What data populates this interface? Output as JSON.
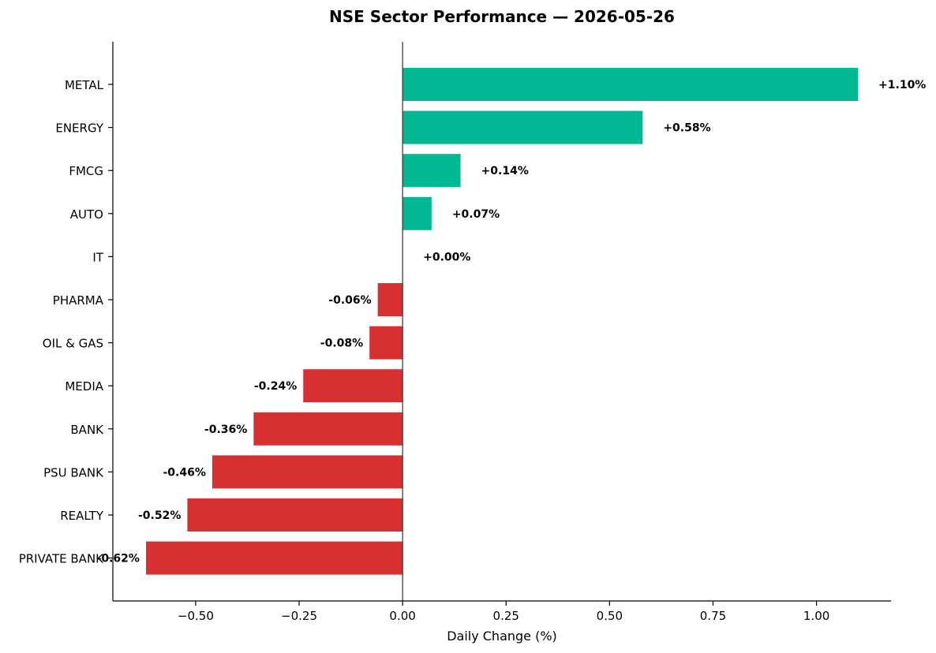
{
  "chart_data": {
    "type": "bar",
    "orientation": "horizontal",
    "title": "NSE Sector Performance — 2026-05-26",
    "xlabel": "Daily Change (%)",
    "ylabel": "",
    "categories": [
      "METAL",
      "ENERGY",
      "FMCG",
      "AUTO",
      "IT",
      "PHARMA",
      "OIL & GAS",
      "MEDIA",
      "BANK",
      "PSU BANK",
      "REALTY",
      "PRIVATE BANK"
    ],
    "values": [
      1.1,
      0.58,
      0.14,
      0.07,
      0.0,
      -0.06,
      -0.08,
      -0.24,
      -0.36,
      -0.46,
      -0.52,
      -0.62
    ],
    "value_labels": [
      "+1.10%",
      "+0.58%",
      "+0.14%",
      "+0.07%",
      "+0.00%",
      "-0.06%",
      "-0.08%",
      "-0.24%",
      "-0.36%",
      "-0.46%",
      "-0.52%",
      "-0.62%"
    ],
    "xlim": [
      -0.7,
      1.18
    ],
    "xticks": [
      -0.5,
      -0.25,
      0.0,
      0.25,
      0.5,
      0.75,
      1.0
    ],
    "xtick_labels": [
      "−0.50",
      "−0.25",
      "0.00",
      "0.25",
      "0.50",
      "0.75",
      "1.00"
    ],
    "grid": false,
    "legend": "none",
    "colors": {
      "positive": "#00b894",
      "negative": "#d63031",
      "zero_line": "#333333",
      "axis": "#000000"
    }
  }
}
